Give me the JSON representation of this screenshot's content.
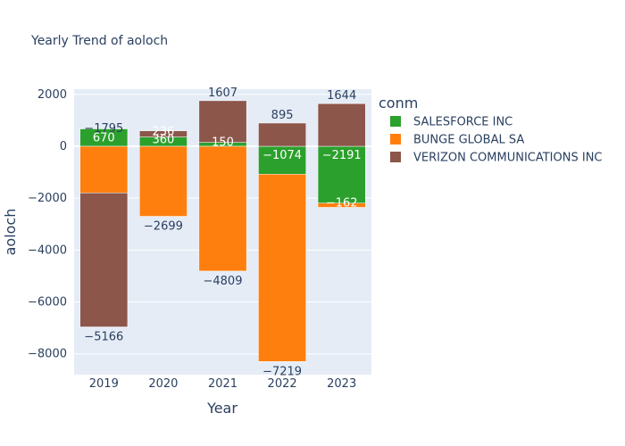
{
  "chart_data": {
    "type": "bar",
    "barmode": "relative",
    "title": "Yearly Trend of aoloch",
    "xlabel": "Year",
    "ylabel": "aoloch",
    "categories": [
      "2019",
      "2020",
      "2021",
      "2022",
      "2023"
    ],
    "ylim": [
      -8800,
      2200
    ],
    "yticks": [
      2000,
      0,
      -2000,
      -4000,
      -6000,
      -8000
    ],
    "ytick_labels": [
      "2000",
      "0",
      "−2000",
      "−4000",
      "−6000",
      "−8000"
    ],
    "grid": true,
    "legend": {
      "title": "conm",
      "placement": "right"
    },
    "series": [
      {
        "name": "SALESFORCE INC",
        "color": "#2ca02c",
        "values": [
          670,
          360,
          150,
          -1074,
          -2191
        ],
        "labels": [
          "670",
          "360",
          "150",
          "−1074",
          "−2191"
        ]
      },
      {
        "name": "BUNGE GLOBAL SA",
        "color": "#ff7f0e",
        "values": [
          -1795,
          -2699,
          -4809,
          -7219,
          -162
        ],
        "labels": [
          "−1795",
          "−2699",
          "−4809",
          "−7219",
          "−162"
        ]
      },
      {
        "name": "VERIZON COMMUNICATIONS INC",
        "color": "#8c564b",
        "values": [
          -5166,
          236,
          1607,
          895,
          1644
        ],
        "labels": [
          "−5166",
          "236",
          "1607",
          "895",
          "1644"
        ]
      }
    ]
  }
}
